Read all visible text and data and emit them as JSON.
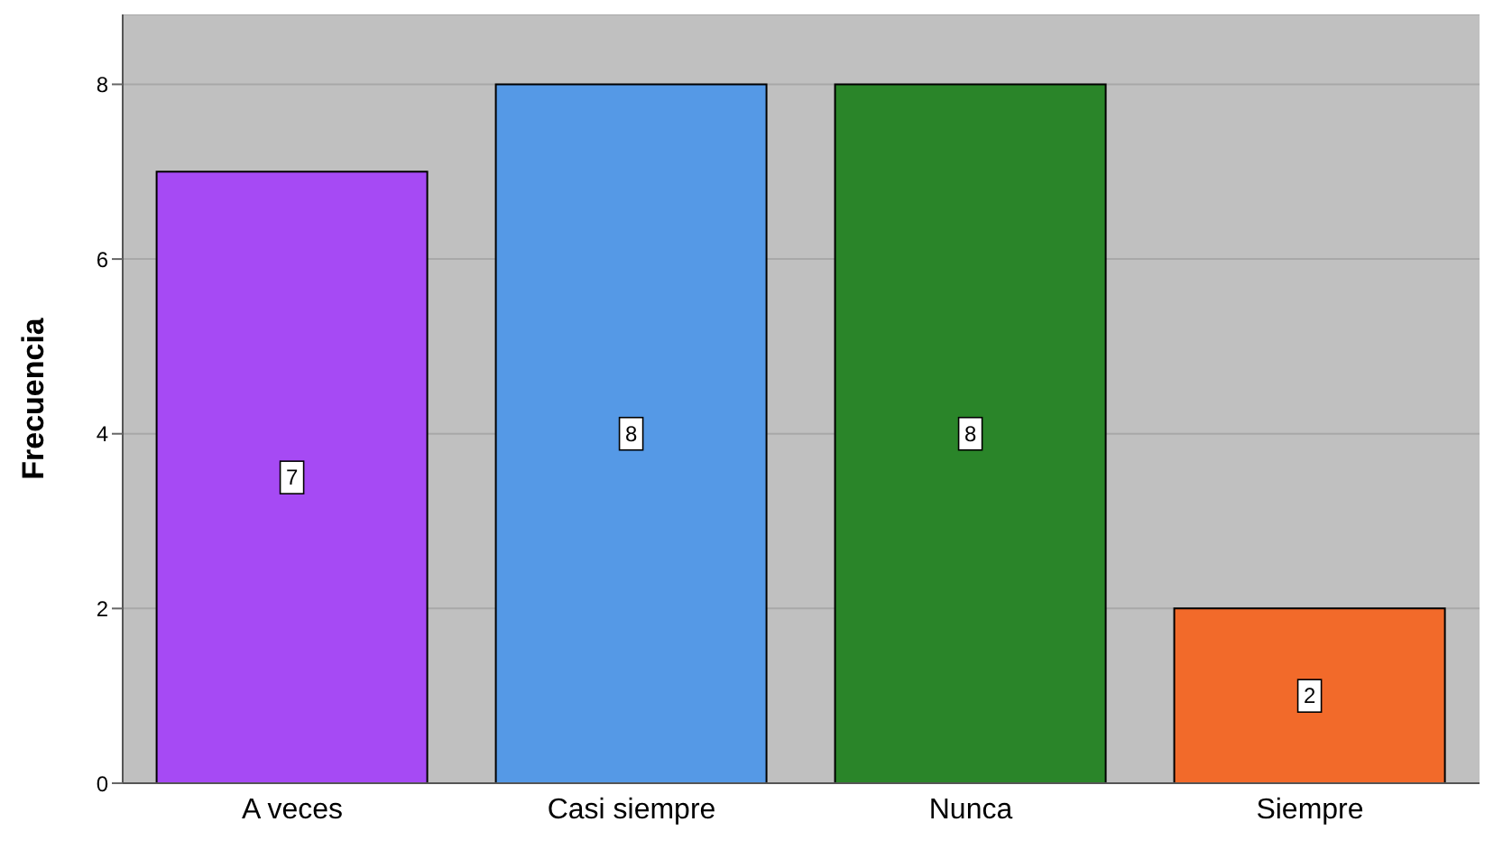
{
  "chart_data": {
    "type": "bar",
    "ylabel": "Frecuencia",
    "categories": [
      "A veces",
      "Casi siempre",
      "Nunca",
      "Siempre"
    ],
    "values": [
      7,
      8,
      8,
      2
    ],
    "colors": [
      "#a64af4",
      "#5599e6",
      "#2a8529",
      "#f26a2a"
    ],
    "ylim": [
      0,
      8.8
    ],
    "yticks": [
      0,
      2,
      4,
      6,
      8
    ],
    "grid": "y",
    "data_labels": true
  }
}
